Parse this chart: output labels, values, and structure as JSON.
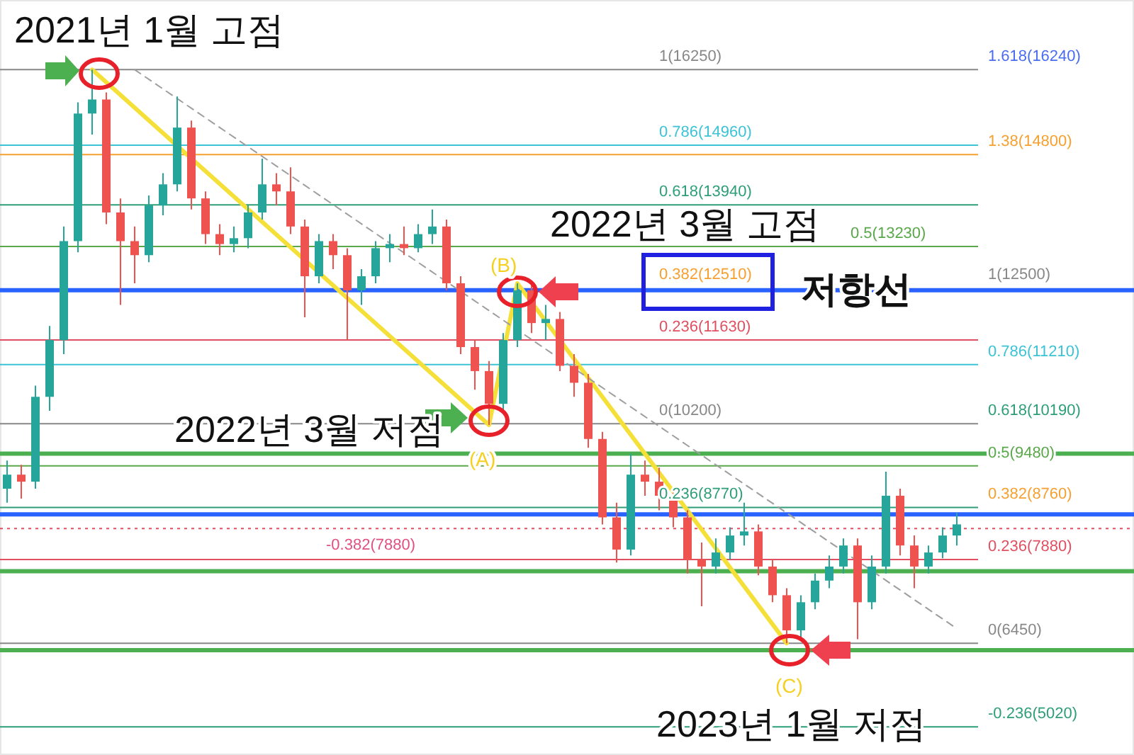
{
  "chart_data": {
    "type": "candlestick",
    "categories": [
      null,
      null,
      null,
      null,
      null,
      null,
      null,
      null,
      null,
      null,
      null,
      null,
      null,
      null,
      null,
      null,
      null,
      null,
      null,
      null,
      null,
      null,
      null,
      null,
      null,
      null,
      null,
      null,
      null,
      null,
      null,
      null,
      null,
      null,
      null,
      null,
      null,
      null,
      null,
      null,
      null,
      null,
      null,
      null,
      null,
      null,
      null,
      null,
      null,
      null,
      null,
      null,
      null,
      null,
      null,
      null,
      null,
      null,
      null,
      null,
      null,
      null,
      null,
      null,
      null,
      null,
      null,
      null
    ],
    "ohlc": [
      [
        9090,
        9570,
        8850,
        9330
      ],
      [
        9330,
        9500,
        8920,
        9210
      ],
      [
        9210,
        10850,
        9090,
        10660
      ],
      [
        10660,
        11870,
        10420,
        11630
      ],
      [
        11630,
        13570,
        11390,
        13320
      ],
      [
        13320,
        15690,
        13130,
        15500
      ],
      [
        15500,
        16250,
        15140,
        15740
      ],
      [
        15740,
        15860,
        13610,
        13810
      ],
      [
        13810,
        14050,
        12230,
        13320
      ],
      [
        13320,
        13570,
        12600,
        13080
      ],
      [
        13080,
        14100,
        12960,
        13930
      ],
      [
        13930,
        14480,
        13760,
        14290
      ],
      [
        14290,
        15790,
        14170,
        15260
      ],
      [
        15260,
        15380,
        13860,
        14050
      ],
      [
        14050,
        14170,
        13270,
        13440
      ],
      [
        13440,
        13610,
        13080,
        13270
      ],
      [
        13270,
        13570,
        13130,
        13370
      ],
      [
        13370,
        13930,
        13200,
        13810
      ],
      [
        13810,
        14730,
        13690,
        14290
      ],
      [
        14290,
        14480,
        13930,
        14170
      ],
      [
        14170,
        14580,
        13440,
        13570
      ],
      [
        13570,
        13690,
        12020,
        12720
      ],
      [
        12720,
        13440,
        12600,
        13320
      ],
      [
        13320,
        13440,
        12840,
        13080
      ],
      [
        13080,
        13200,
        11630,
        12480
      ],
      [
        12480,
        12840,
        12230,
        12720
      ],
      [
        12720,
        13320,
        12600,
        13200
      ],
      [
        13200,
        13440,
        12960,
        13270
      ],
      [
        13270,
        13570,
        13080,
        13200
      ],
      [
        13200,
        13610,
        13130,
        13440
      ],
      [
        13440,
        13860,
        13270,
        13570
      ],
      [
        13570,
        13690,
        12480,
        12600
      ],
      [
        12600,
        12720,
        11390,
        11510
      ],
      [
        11510,
        11630,
        10780,
        11100
      ],
      [
        11100,
        11270,
        10180,
        10540
      ],
      [
        10540,
        11750,
        10420,
        11630
      ],
      [
        11630,
        12600,
        11510,
        12480
      ],
      [
        12480,
        12600,
        11750,
        11920
      ],
      [
        11920,
        12230,
        11630,
        11990
      ],
      [
        11990,
        12110,
        11100,
        11190
      ],
      [
        11190,
        11390,
        10660,
        10900
      ],
      [
        10900,
        11050,
        9790,
        9940
      ],
      [
        9940,
        10060,
        8480,
        8600
      ],
      [
        8600,
        8850,
        7830,
        8050
      ],
      [
        8050,
        9690,
        7950,
        9330
      ],
      [
        9330,
        9570,
        8970,
        9210
      ],
      [
        9210,
        9450,
        8720,
        8970
      ],
      [
        8970,
        9090,
        8430,
        8600
      ],
      [
        8600,
        8720,
        7640,
        7880
      ],
      [
        7880,
        8170,
        7080,
        7760
      ],
      [
        7760,
        8240,
        7640,
        8000
      ],
      [
        8000,
        8430,
        7880,
        8290
      ],
      [
        8290,
        8850,
        8120,
        8360
      ],
      [
        8360,
        8480,
        7610,
        7760
      ],
      [
        7760,
        7880,
        7150,
        7270
      ],
      [
        7270,
        7390,
        6450,
        6670
      ],
      [
        6670,
        7270,
        6550,
        7150
      ],
      [
        7150,
        7640,
        7030,
        7520
      ],
      [
        7520,
        7950,
        7390,
        7760
      ],
      [
        7760,
        8240,
        7640,
        8120
      ],
      [
        8120,
        8240,
        6520,
        7150
      ],
      [
        7150,
        7950,
        7030,
        7760
      ],
      [
        7760,
        9380,
        7640,
        8970
      ],
      [
        8970,
        9090,
        7950,
        8120
      ],
      [
        8120,
        8290,
        7390,
        7760
      ],
      [
        7760,
        8120,
        7640,
        8000
      ],
      [
        8000,
        8430,
        7900,
        8290
      ],
      [
        8290,
        8680,
        8120,
        8480
      ]
    ],
    "series": [
      {
        "type": "line",
        "color": "#f5e03a",
        "values": [
          null,
          null,
          null,
          null,
          null,
          null,
          16250,
          null,
          null,
          null,
          null,
          null,
          null,
          null,
          null,
          null,
          null,
          null,
          null,
          null,
          null,
          null,
          null,
          null,
          null,
          null,
          null,
          null,
          null,
          null,
          null,
          null,
          null,
          null,
          10180,
          null,
          12600,
          null,
          null,
          null,
          null,
          null,
          null,
          null,
          null,
          null,
          null,
          null,
          null,
          null,
          null,
          null,
          null,
          null,
          null,
          6450,
          null,
          null,
          null,
          null,
          null,
          null,
          null,
          null,
          null,
          null,
          null,
          null
        ]
      },
      {
        "type": "line",
        "color": "#9e9e9e",
        "line_style": "dashed",
        "values": [
          null,
          null,
          null,
          null,
          null,
          null,
          null,
          null,
          null,
          16250,
          null,
          null,
          null,
          null,
          null,
          null,
          null,
          null,
          null,
          null,
          null,
          null,
          null,
          null,
          null,
          null,
          null,
          null,
          null,
          null,
          null,
          null,
          null,
          null,
          null,
          null,
          null,
          null,
          null,
          null,
          null,
          null,
          null,
          null,
          null,
          null,
          null,
          null,
          null,
          null,
          null,
          null,
          null,
          null,
          null,
          null,
          null,
          null,
          null,
          null,
          null,
          null,
          null,
          null,
          null,
          null,
          null,
          6700
        ]
      }
    ],
    "ylim": [
      4540,
      17440
    ],
    "ref_lines": [
      {
        "axis": "y",
        "value": 16250,
        "label": "1(16250)",
        "color": "#888888"
      },
      {
        "axis": "y",
        "value": 14960,
        "label": "0.786(14960)",
        "color": "#3cc3d6"
      },
      {
        "axis": "y",
        "value": 14800,
        "label": "1.38(14800)",
        "color": "#f5a030"
      },
      {
        "axis": "y",
        "value": 13940,
        "label": "0.618(13940)",
        "color": "#2e9e78"
      },
      {
        "axis": "y",
        "value": 13230,
        "label": "0.5(13230)",
        "color": "#5aa84a"
      },
      {
        "axis": "y",
        "value": 12480,
        "color": "#2962ff"
      },
      {
        "axis": "y",
        "value": 11630,
        "label": "0.236(11630)",
        "color": "#e05060"
      },
      {
        "axis": "y",
        "value": 11210,
        "label": "0.786(11210)",
        "color": "#3cc3d6"
      },
      {
        "axis": "y",
        "value": 10200,
        "label": "0(10200)",
        "color": "#888888"
      },
      {
        "axis": "y",
        "value": 9690,
        "color": "#4caf50"
      },
      {
        "axis": "y",
        "value": 9480,
        "label": "0.5(9480)",
        "color": "#5aa84a"
      },
      {
        "axis": "y",
        "value": 8770,
        "label": "0.236(8770)",
        "color": "#2e9e78"
      },
      {
        "axis": "y",
        "value": 8650,
        "color": "#2962ff"
      },
      {
        "axis": "y",
        "value": 8410,
        "color": "#e05060",
        "line_style": "dotted"
      },
      {
        "axis": "y",
        "value": 7880,
        "label": "0.236(7880)",
        "color": "#e05060"
      },
      {
        "axis": "y",
        "value": 7680,
        "color": "#4caf50"
      },
      {
        "axis": "y",
        "value": 6450,
        "label": "0(6450)",
        "color": "#888888"
      },
      {
        "axis": "y",
        "value": 6330,
        "color": "#4caf50"
      },
      {
        "axis": "y",
        "value": 5020,
        "label": "-0.236(5020)",
        "color": "#2e9e78"
      }
    ],
    "annotations": [
      "2021년 1월 고점",
      "2022년 3월 고점",
      "저항선",
      "2022년 3월 저점",
      "2023년 1월 저점",
      "(A)",
      "(B)",
      "(C)",
      "1.618(16240)",
      "0.382(12510)",
      "1(12500)",
      "0.618(10190)",
      "0.382(8760)",
      "-0.382(7880)"
    ]
  }
}
